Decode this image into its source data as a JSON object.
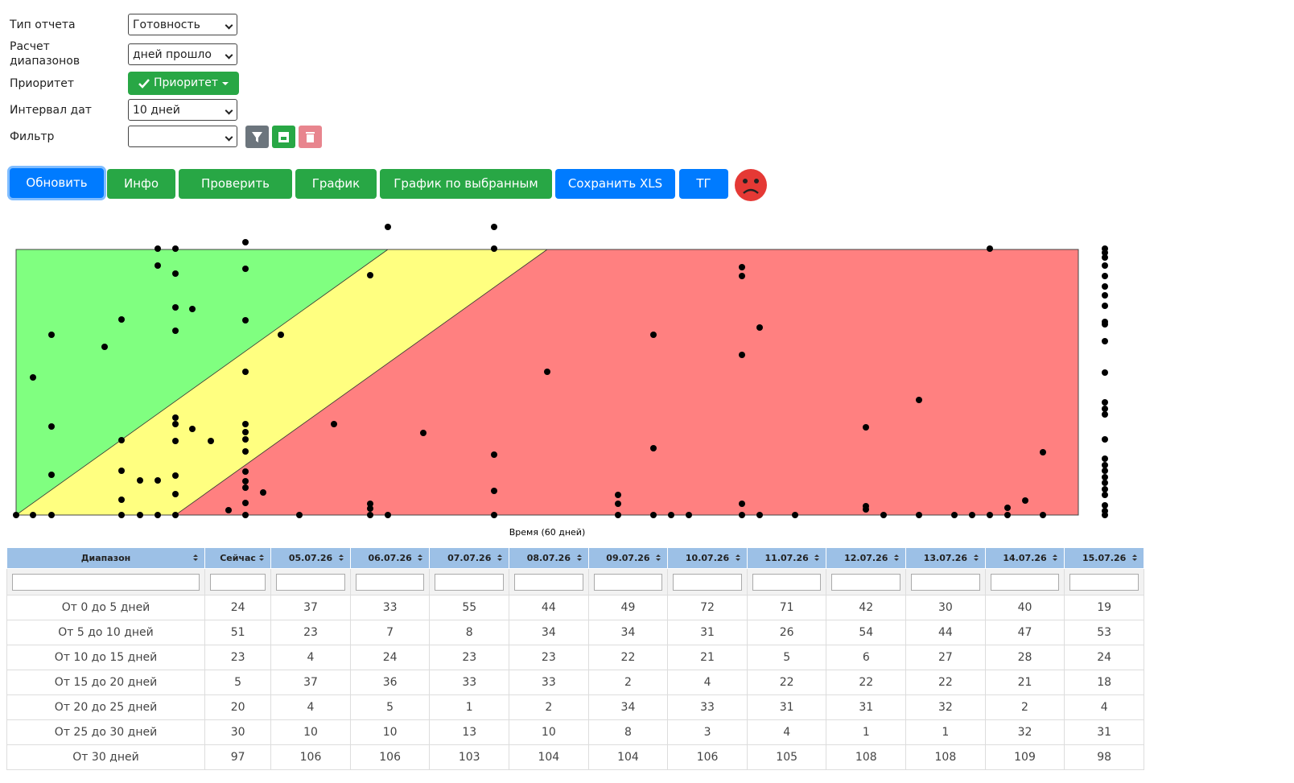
{
  "form": {
    "fields": [
      {
        "label": "Тип отчета",
        "value": "Готовность"
      },
      {
        "label": "Расчет диапазонов",
        "value": "дней прошло"
      },
      {
        "label": "Приоритет",
        "value": "Приоритет"
      },
      {
        "label": "Интервал дат",
        "value": "10 дней"
      },
      {
        "label": "Фильтр",
        "value": ""
      }
    ]
  },
  "toolbar": {
    "buttons": [
      "Обновить",
      "Инфо",
      "Проверить",
      "График",
      "График по выбранным",
      "Сохранить XLS",
      "ТГ"
    ]
  },
  "chart": {
    "x_label": "Время (60 дней)"
  },
  "table": {
    "headers": [
      "Диапазон",
      "Сейчас",
      "05.07.26",
      "06.07.26",
      "07.07.26",
      "08.07.26",
      "09.07.26",
      "10.07.26",
      "11.07.26",
      "12.07.26",
      "13.07.26",
      "14.07.26",
      "15.07.26"
    ],
    "rows": [
      [
        "От 0 до 5 дней",
        24,
        37,
        33,
        55,
        44,
        49,
        72,
        71,
        42,
        30,
        40,
        19
      ],
      [
        "От 5 до 10 дней",
        51,
        23,
        7,
        8,
        34,
        34,
        31,
        26,
        54,
        44,
        47,
        53
      ],
      [
        "От 10 до 15 дней",
        23,
        4,
        24,
        23,
        23,
        22,
        21,
        5,
        6,
        27,
        28,
        24
      ],
      [
        "От 15 до 20 дней",
        5,
        37,
        36,
        33,
        33,
        2,
        4,
        22,
        22,
        22,
        21,
        18
      ],
      [
        "От 20 до 25 дней",
        20,
        4,
        5,
        1,
        2,
        34,
        33,
        31,
        31,
        32,
        2,
        4
      ],
      [
        "От 25 до 30 дней",
        30,
        10,
        10,
        13,
        10,
        8,
        3,
        4,
        1,
        1,
        32,
        31
      ],
      [
        "От 30 дней",
        97,
        106,
        106,
        103,
        104,
        104,
        106,
        105,
        108,
        108,
        109,
        98
      ]
    ]
  }
}
